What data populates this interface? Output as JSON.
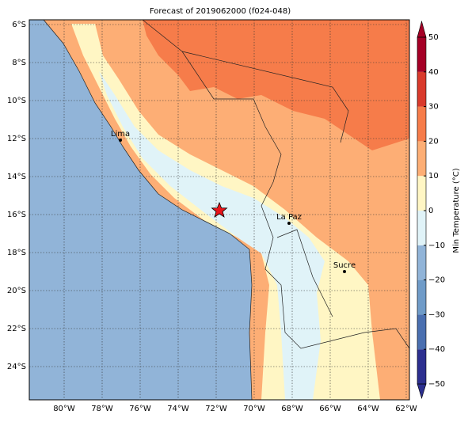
{
  "title": "Forecast of 2019062000 (f024-048)",
  "lon_labels": [
    "80°W",
    "78°W",
    "76°W",
    "74°W",
    "72°W",
    "70°W",
    "68°W",
    "66°W",
    "64°W",
    "62°W"
  ],
  "lat_labels": [
    "6°S",
    "8°S",
    "10°S",
    "12°S",
    "14°S",
    "16°S",
    "18°S",
    "20°S",
    "22°S",
    "24°S"
  ],
  "cities": [
    "Lima",
    "La Paz",
    "Sucre"
  ],
  "colorbar": {
    "label": "Min Temperature (°C)",
    "ticks": [
      {
        "value": -50,
        "label": "−50"
      },
      {
        "value": -40,
        "label": "−40"
      },
      {
        "value": -30,
        "label": "−30"
      },
      {
        "value": -20,
        "label": "−20"
      },
      {
        "value": -10,
        "label": "−10"
      },
      0,
      10,
      20,
      30,
      40,
      50
    ],
    "colors": [
      "#2c2f8f",
      "#4a6fb0",
      "#6f9bc8",
      "#91b4d8",
      "#e0f3f8",
      "#fff6c4",
      "#fdae75",
      "#f67c4a",
      "#d93a2c",
      "#a50026"
    ]
  }
}
